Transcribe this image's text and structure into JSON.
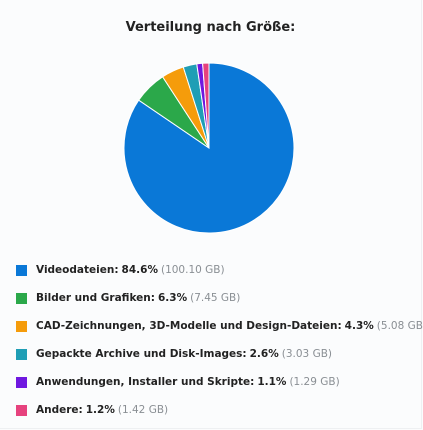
{
  "title": "Verteilung nach Größe:",
  "chart_data": {
    "type": "pie",
    "title": "Verteilung nach Größe:",
    "slices": [
      {
        "label": "Videodateien:",
        "percent_text": "84.6%",
        "value": 84.6,
        "size": "(100.10 GB)",
        "color": "#0a78d7"
      },
      {
        "label": "Bilder und Grafiken:",
        "percent_text": "6.3%",
        "value": 6.3,
        "size": "(7.45 GB)",
        "color": "#2ba84a"
      },
      {
        "label": "CAD-Zeichnungen, 3D-Modelle und Design-Dateien:",
        "percent_text": "4.3%",
        "value": 4.3,
        "size": "(5.08 GB)",
        "color": "#f59c0b"
      },
      {
        "label": "Gepackte Archive und Disk-Images:",
        "percent_text": "2.6%",
        "value": 2.6,
        "size": "(3.03 GB)",
        "color": "#1f9eb5"
      },
      {
        "label": "Anwendungen, Installer und Skripte:",
        "percent_text": "1.1%",
        "value": 1.1,
        "size": "(1.29 GB)",
        "color": "#6f18e0"
      },
      {
        "label": "Andere:",
        "percent_text": "1.2%",
        "value": 1.2,
        "size": "(1.42 GB)",
        "color": "#e6427e"
      }
    ]
  }
}
